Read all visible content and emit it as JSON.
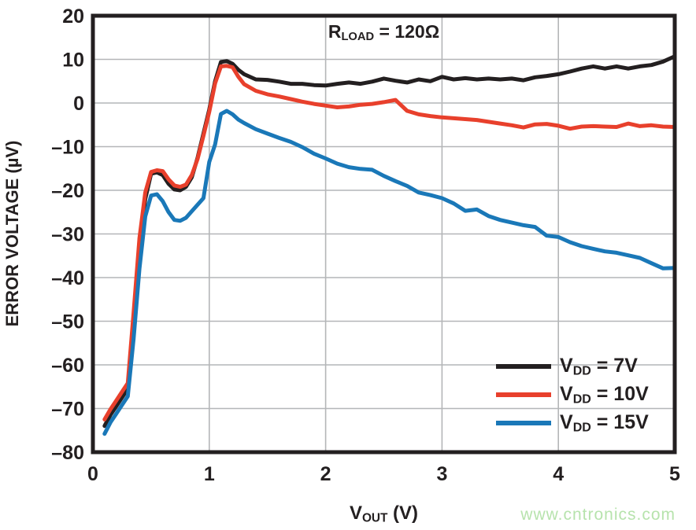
{
  "page": {
    "background": "#ffffff"
  },
  "watermark": {
    "text": "www.cntronics.com",
    "color": "#b7e3ad"
  },
  "chart_data": {
    "type": "line",
    "annotation": {
      "prefix": "R",
      "sub": "LOAD",
      "suffix": " = 120Ω"
    },
    "xlabel": {
      "prefix": "V",
      "sub": "OUT",
      "suffix": " (V)"
    },
    "ylabel": "ERROR VOLTAGE (µV)",
    "xlim": [
      0,
      5
    ],
    "ylim": [
      -80,
      20
    ],
    "x_ticks": [
      0,
      1,
      2,
      3,
      4,
      5
    ],
    "x_tick_labels": [
      "0",
      "1",
      "2",
      "3",
      "4",
      "5"
    ],
    "y_ticks": [
      20,
      10,
      0,
      -10,
      -20,
      -30,
      -40,
      -50,
      -60,
      -70,
      -80
    ],
    "y_tick_labels": [
      "20",
      "10",
      "0",
      "–10",
      "–20",
      "–30",
      "–40",
      "–50",
      "–60",
      "–70",
      "–80"
    ],
    "grid": true,
    "grid_color": "#b4b6b8",
    "frame_color": "#231f20",
    "legend_position": "inside-lower-right",
    "x": [
      0.1,
      0.15,
      0.2,
      0.25,
      0.3,
      0.35,
      0.4,
      0.45,
      0.5,
      0.55,
      0.6,
      0.65,
      0.7,
      0.75,
      0.8,
      0.85,
      0.9,
      0.95,
      1.0,
      1.05,
      1.1,
      1.15,
      1.2,
      1.25,
      1.3,
      1.4,
      1.5,
      1.6,
      1.7,
      1.8,
      1.9,
      2.0,
      2.1,
      2.2,
      2.3,
      2.4,
      2.5,
      2.6,
      2.7,
      2.8,
      2.9,
      3.0,
      3.1,
      3.2,
      3.3,
      3.4,
      3.5,
      3.6,
      3.7,
      3.8,
      3.9,
      4.0,
      4.1,
      4.2,
      4.3,
      4.4,
      4.5,
      4.6,
      4.7,
      4.8,
      4.9,
      5.0
    ],
    "series": [
      {
        "name": "VDD = 7V",
        "name_prefix": "V",
        "name_sub": "DD",
        "name_suffix": " = 7V",
        "color": "#231f20",
        "values": [
          -74,
          -71.5,
          -69.5,
          -67.5,
          -65.5,
          -50,
          -33,
          -22,
          -16.2,
          -15.9,
          -16.5,
          -18.5,
          -19.8,
          -20.0,
          -19.2,
          -17.0,
          -12.5,
          -7.0,
          -1.5,
          5.0,
          9.4,
          9.6,
          9.0,
          7.6,
          6.6,
          5.4,
          5.3,
          4.9,
          4.4,
          4.4,
          4.1,
          4.0,
          4.4,
          4.7,
          4.4,
          4.9,
          5.6,
          5.1,
          4.7,
          5.4,
          5.0,
          6.0,
          5.4,
          5.7,
          5.4,
          5.6,
          5.4,
          5.6,
          5.2,
          5.9,
          6.2,
          6.6,
          7.2,
          7.9,
          8.4,
          7.9,
          8.4,
          7.9,
          8.4,
          8.7,
          9.5,
          10.7
        ]
      },
      {
        "name": "VDD = 10V",
        "name_prefix": "V",
        "name_sub": "DD",
        "name_suffix": " = 10V",
        "color": "#e8402c",
        "values": [
          -72.5,
          -70.2,
          -68.2,
          -66.2,
          -64.2,
          -48,
          -31,
          -20.5,
          -15.8,
          -15.4,
          -15.6,
          -17.5,
          -18.9,
          -19.2,
          -18.7,
          -16.5,
          -12.8,
          -7.5,
          -2.0,
          4.5,
          8.4,
          8.5,
          8.2,
          6.0,
          4.3,
          2.8,
          2.0,
          1.5,
          0.9,
          0.3,
          -0.2,
          -0.6,
          -1.0,
          -0.8,
          -0.4,
          -0.2,
          0.2,
          0.7,
          -1.8,
          -2.6,
          -3.0,
          -3.3,
          -3.5,
          -3.7,
          -3.9,
          -4.3,
          -4.7,
          -5.1,
          -5.6,
          -4.9,
          -4.8,
          -5.2,
          -5.9,
          -5.4,
          -5.3,
          -5.4,
          -5.5,
          -4.7,
          -5.3,
          -5.1,
          -5.4,
          -5.5
        ]
      },
      {
        "name": "VDD = 15V",
        "name_prefix": "V",
        "name_sub": "DD",
        "name_suffix": " = 15V",
        "color": "#1a78b8",
        "values": [
          -75.8,
          -73.2,
          -71.2,
          -69.2,
          -67.2,
          -54,
          -38,
          -26,
          -21.2,
          -20.9,
          -22.5,
          -25,
          -26.8,
          -27.0,
          -26.3,
          -24.8,
          -23.3,
          -21.8,
          -13.5,
          -9.5,
          -2.5,
          -1.8,
          -2.6,
          -3.8,
          -4.6,
          -6.0,
          -7.0,
          -8.0,
          -8.9,
          -10.1,
          -11.6,
          -12.7,
          -13.9,
          -14.7,
          -15.1,
          -15.3,
          -16.7,
          -17.9,
          -19.0,
          -20.5,
          -21.1,
          -21.8,
          -23.0,
          -24.7,
          -24.4,
          -25.9,
          -26.8,
          -27.4,
          -28.0,
          -28.4,
          -30.4,
          -30.7,
          -31.9,
          -32.8,
          -33.4,
          -34.0,
          -34.3,
          -34.9,
          -35.5,
          -36.7,
          -37.9,
          -37.8
        ]
      }
    ]
  }
}
